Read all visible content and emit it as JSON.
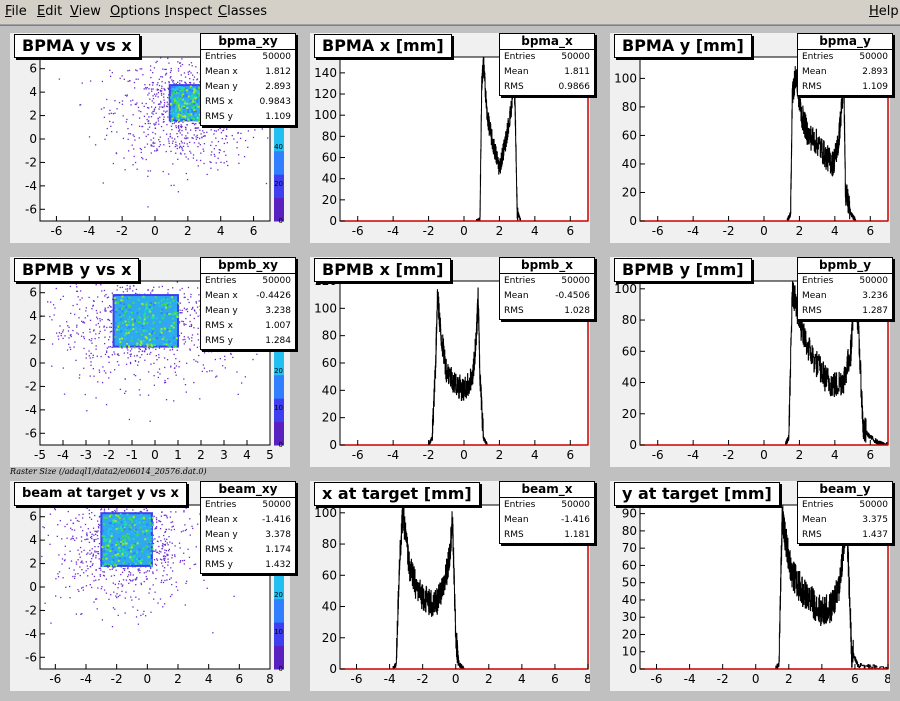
{
  "menu": {
    "file": {
      "u": "F",
      "rest": "ile"
    },
    "edit": {
      "u": "E",
      "rest": "dit"
    },
    "view": {
      "u": "V",
      "rest": "iew"
    },
    "options": {
      "u": "O",
      "rest": "ptions"
    },
    "inspect": {
      "u": "I",
      "rest": "nspect"
    },
    "classes": {
      "u": "C",
      "rest": "lasses"
    },
    "help": {
      "u": "H",
      "rest": "elp"
    }
  },
  "footer_note": "Raster Size (/adaql1/data2/e06014_20576.dat.0)",
  "colors": {
    "hist_line": "#000000",
    "axis_red": "#cc0000",
    "pad_bg": "#f0f0f0"
  },
  "pads": [
    {
      "name": "bpma-xy-pad",
      "title": "BPMA y vs x",
      "stats": {
        "name": "bpma_xy",
        "rows": [
          [
            "Entries",
            "50000"
          ],
          [
            "Mean x",
            "1.812"
          ],
          [
            "Mean y",
            "2.893"
          ],
          [
            "RMS x",
            "0.9843"
          ],
          [
            "RMS y",
            "1.109"
          ]
        ]
      }
    },
    {
      "name": "bpma-x-pad",
      "title": "BPMA x [mm]",
      "stats": {
        "name": "bpma_x",
        "rows": [
          [
            "Entries",
            "50000"
          ],
          [
            "Mean",
            "1.811"
          ],
          [
            "RMS",
            "0.9866"
          ]
        ]
      }
    },
    {
      "name": "bpma-y-pad",
      "title": "BPMA y [mm]",
      "stats": {
        "name": "bpma_y",
        "rows": [
          [
            "Entries",
            "50000"
          ],
          [
            "Mean",
            "2.893"
          ],
          [
            "RMS",
            "1.109"
          ]
        ]
      }
    },
    {
      "name": "bpmb-xy-pad",
      "title": "BPMB y vs x",
      "stats": {
        "name": "bpmb_xy",
        "rows": [
          [
            "Entries",
            "50000"
          ],
          [
            "Mean x",
            "-0.4426"
          ],
          [
            "Mean y",
            "3.238"
          ],
          [
            "RMS x",
            "1.007"
          ],
          [
            "RMS y",
            "1.284"
          ]
        ]
      }
    },
    {
      "name": "bpmb-x-pad",
      "title": "BPMB x [mm]",
      "stats": {
        "name": "bpmb_x",
        "rows": [
          [
            "Entries",
            "50000"
          ],
          [
            "Mean",
            "-0.4506"
          ],
          [
            "RMS",
            "1.028"
          ]
        ]
      }
    },
    {
      "name": "bpmb-y-pad",
      "title": "BPMB y [mm]",
      "stats": {
        "name": "bpmb_y",
        "rows": [
          [
            "Entries",
            "50000"
          ],
          [
            "Mean",
            "3.236"
          ],
          [
            "RMS",
            "1.287"
          ]
        ]
      }
    },
    {
      "name": "beam-xy-pad",
      "title": "beam at target y vs x",
      "stats": {
        "name": "beam_xy",
        "rows": [
          [
            "Entries",
            "50000"
          ],
          [
            "Mean x",
            "-1.416"
          ],
          [
            "Mean y",
            "3.378"
          ],
          [
            "RMS x",
            "1.174"
          ],
          [
            "RMS y",
            "1.432"
          ]
        ]
      }
    },
    {
      "name": "beam-x-pad",
      "title": "x at target [mm]",
      "stats": {
        "name": "beam_x",
        "rows": [
          [
            "Entries",
            "50000"
          ],
          [
            "Mean",
            "-1.416"
          ],
          [
            "RMS",
            "1.181"
          ]
        ]
      }
    },
    {
      "name": "beam-y-pad",
      "title": "y at target [mm]",
      "stats": {
        "name": "beam_y",
        "rows": [
          [
            "Entries",
            "50000"
          ],
          [
            "Mean",
            "3.375"
          ],
          [
            "RMS",
            "1.437"
          ]
        ]
      }
    }
  ],
  "chart_data": [
    {
      "type": "heatmap",
      "title": "BPMA y vs x",
      "xlim": [
        -7,
        7
      ],
      "ylim": [
        -7,
        7
      ],
      "xticks": [
        -6,
        -4,
        -2,
        0,
        2,
        4,
        6
      ],
      "yticks": [
        -6,
        -4,
        -2,
        0,
        2,
        4,
        6
      ],
      "core": {
        "x": [
          0.9,
          2.9
        ],
        "y": [
          1.6,
          4.6
        ]
      },
      "halo": {
        "x": 1.8,
        "y": 2.4
      },
      "colorbar_ticks": [
        0,
        20,
        40,
        60
      ]
    },
    {
      "type": "line",
      "title": "BPMA x [mm]",
      "xlim": [
        -7,
        7
      ],
      "ylim": [
        0,
        155
      ],
      "xticks": [
        -6,
        -4,
        -2,
        0,
        2,
        4,
        6
      ],
      "yticks": [
        0,
        20,
        40,
        60,
        80,
        100,
        120,
        140
      ],
      "x": [
        -7.0,
        0.7,
        0.9,
        1.0,
        1.1,
        1.3,
        1.6,
        2.0,
        2.4,
        2.7,
        2.8,
        2.9,
        3.0,
        3.2,
        7.0
      ],
      "y": [
        0,
        0,
        2,
        130,
        150,
        100,
        75,
        50,
        80,
        110,
        150,
        95,
        10,
        0,
        0
      ]
    },
    {
      "type": "line",
      "title": "BPMA y [mm]",
      "xlim": [
        -7,
        7
      ],
      "ylim": [
        0,
        115
      ],
      "xticks": [
        -6,
        -4,
        -2,
        0,
        2,
        4,
        6
      ],
      "yticks": [
        0,
        20,
        40,
        60,
        80,
        100
      ],
      "x": [
        -7.0,
        1.3,
        1.5,
        1.6,
        1.8,
        2.1,
        2.5,
        3.0,
        3.5,
        3.9,
        4.2,
        4.4,
        4.5,
        4.6,
        4.9,
        5.2,
        7.0
      ],
      "y": [
        0,
        0,
        5,
        90,
        102,
        75,
        60,
        55,
        45,
        40,
        55,
        82,
        102,
        20,
        5,
        0,
        0
      ]
    },
    {
      "type": "heatmap",
      "title": "BPMB y vs x",
      "xlim": [
        -5,
        5
      ],
      "ylim": [
        -7,
        7
      ],
      "xticks": [
        -5,
        -4,
        -3,
        -2,
        -1,
        0,
        1,
        2,
        3,
        4,
        5
      ],
      "yticks": [
        -6,
        -4,
        -2,
        0,
        2,
        4,
        6
      ],
      "core": {
        "x": [
          -1.8,
          1.0
        ],
        "y": [
          1.4,
          5.8
        ]
      },
      "halo": {
        "x": -0.4,
        "y": 3.2
      },
      "colorbar_ticks": [
        0,
        10,
        20,
        30
      ]
    },
    {
      "type": "line",
      "title": "BPMB x [mm]",
      "xlim": [
        -7,
        7
      ],
      "ylim": [
        0,
        120
      ],
      "xticks": [
        -6,
        -4,
        -2,
        0,
        2,
        4,
        6
      ],
      "yticks": [
        0,
        20,
        40,
        60,
        80,
        100,
        120
      ],
      "x": [
        -7.0,
        -2.0,
        -1.8,
        -1.6,
        -1.5,
        -1.3,
        -1.0,
        -0.5,
        0.0,
        0.5,
        0.7,
        0.8,
        0.9,
        1.1,
        1.3,
        7.0
      ],
      "y": [
        0,
        0,
        5,
        60,
        110,
        80,
        55,
        45,
        40,
        50,
        80,
        110,
        50,
        5,
        0,
        0
      ]
    },
    {
      "type": "line",
      "title": "BPMB y [mm]",
      "xlim": [
        -7,
        7
      ],
      "ylim": [
        0,
        105
      ],
      "xticks": [
        -6,
        -4,
        -2,
        0,
        2,
        4,
        6
      ],
      "yticks": [
        0,
        20,
        40,
        60,
        80,
        100
      ],
      "x": [
        -7.0,
        1.2,
        1.4,
        1.6,
        1.8,
        2.2,
        2.8,
        3.5,
        4.0,
        4.5,
        4.9,
        5.1,
        5.3,
        5.6,
        6.0,
        6.5,
        7.0
      ],
      "y": [
        0,
        0,
        5,
        100,
        90,
        70,
        55,
        42,
        38,
        42,
        60,
        100,
        80,
        10,
        5,
        1,
        0
      ]
    },
    {
      "type": "heatmap",
      "title": "beam at target y vs x",
      "xlim": [
        -7,
        8
      ],
      "ylim": [
        -7,
        7
      ],
      "xticks": [
        -6,
        -4,
        -2,
        0,
        2,
        4,
        6,
        8
      ],
      "yticks": [
        -6,
        -4,
        -2,
        0,
        2,
        4,
        6
      ],
      "core": {
        "x": [
          -3.0,
          0.3
        ],
        "y": [
          1.8,
          6.3
        ]
      },
      "halo": {
        "x": -1.4,
        "y": 3.4
      },
      "colorbar_ticks": [
        0,
        10,
        20,
        30
      ]
    },
    {
      "type": "line",
      "title": "x at target [mm]",
      "xlim": [
        -7,
        8
      ],
      "ylim": [
        0,
        105
      ],
      "xticks": [
        -6,
        -4,
        -2,
        0,
        2,
        4,
        6,
        8
      ],
      "yticks": [
        0,
        20,
        40,
        60,
        80,
        100
      ],
      "x": [
        -7.0,
        -3.8,
        -3.6,
        -3.4,
        -3.2,
        -2.8,
        -2.3,
        -1.8,
        -1.3,
        -0.8,
        -0.4,
        -0.2,
        0.0,
        0.2,
        0.5,
        8.0
      ],
      "y": [
        0,
        0,
        3,
        70,
        100,
        65,
        50,
        45,
        40,
        50,
        70,
        95,
        20,
        3,
        0,
        0
      ]
    },
    {
      "type": "line",
      "title": "y at target [mm]",
      "xlim": [
        -7,
        8
      ],
      "ylim": [
        0,
        95
      ],
      "xticks": [
        -6,
        -4,
        -2,
        0,
        2,
        4,
        6,
        8
      ],
      "yticks": [
        0,
        10,
        20,
        30,
        40,
        50,
        60,
        70,
        80,
        90
      ],
      "x": [
        -7.0,
        1.2,
        1.4,
        1.6,
        1.8,
        2.2,
        2.8,
        3.5,
        4.0,
        4.5,
        5.0,
        5.3,
        5.5,
        5.8,
        6.2,
        8.0
      ],
      "y": [
        0,
        0,
        3,
        88,
        75,
        55,
        45,
        38,
        33,
        35,
        45,
        70,
        85,
        10,
        2,
        0
      ]
    }
  ]
}
